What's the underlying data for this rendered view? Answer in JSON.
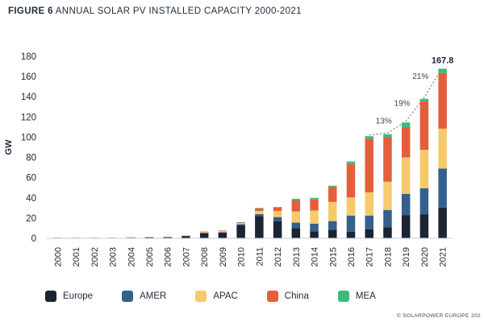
{
  "figure": {
    "label": "FIGURE 6",
    "title": "ANNUAL SOLAR PV INSTALLED CAPACITY 2000-2021",
    "credit": "© SOLARPOWER EUROPE 202"
  },
  "chart_data": {
    "type": "bar",
    "stacked": true,
    "categories": [
      "2000",
      "2001",
      "2002",
      "2003",
      "2004",
      "2005",
      "2006",
      "2007",
      "2008",
      "2009",
      "2010",
      "2011",
      "2012",
      "2013",
      "2014",
      "2015",
      "2016",
      "2017",
      "2018",
      "2019",
      "2020",
      "2021"
    ],
    "ylabel": "GW",
    "xlabel": "",
    "ylim": [
      0,
      180
    ],
    "yticks": [
      0,
      20,
      40,
      60,
      80,
      100,
      120,
      140,
      160,
      180
    ],
    "grid": false,
    "legend_position": "bottom",
    "series": [
      {
        "name": "Europe",
        "color": "#1a2433",
        "values": [
          0.1,
          0.2,
          0.2,
          0.3,
          0.6,
          0.8,
          1.0,
          2.0,
          5.0,
          5.5,
          13.0,
          22.0,
          17.0,
          10.0,
          7.0,
          8.5,
          6.5,
          9.0,
          11.0,
          23.0,
          23.5,
          30.5
        ]
      },
      {
        "name": "AMER",
        "color": "#355f8d",
        "values": [
          0.05,
          0.1,
          0.1,
          0.1,
          0.1,
          0.1,
          0.2,
          0.3,
          0.5,
          0.5,
          1.0,
          2.0,
          4.0,
          5.5,
          7.5,
          8.5,
          16.0,
          13.5,
          17.0,
          21.0,
          26.0,
          38.5
        ]
      },
      {
        "name": "APAC",
        "color": "#f6c96b",
        "values": [
          0.2,
          0.2,
          0.3,
          0.3,
          0.4,
          0.5,
          0.3,
          0.6,
          0.7,
          1.2,
          1.0,
          3.0,
          6.0,
          11.0,
          13.0,
          19.0,
          18.0,
          23.0,
          28.0,
          36.0,
          38.0,
          39.5
        ]
      },
      {
        "name": "China",
        "color": "#e35f3b",
        "values": [
          0.0,
          0.0,
          0.0,
          0.0,
          0.0,
          0.0,
          0.0,
          0.0,
          0.05,
          0.15,
          0.5,
          2.5,
          3.5,
          11.0,
          11.0,
          15.0,
          33.0,
          53.0,
          44.0,
          30.0,
          48.0,
          55.0
        ]
      },
      {
        "name": "MEA",
        "color": "#3dba7e",
        "values": [
          0.0,
          0.0,
          0.0,
          0.0,
          0.0,
          0.0,
          0.0,
          0.0,
          0.0,
          0.0,
          0.1,
          0.5,
          0.5,
          1.5,
          1.5,
          1.0,
          2.5,
          2.5,
          3.0,
          4.5,
          2.5,
          4.3
        ]
      }
    ],
    "annotations": {
      "total_label": "167.8",
      "growth": [
        {
          "year": "2018",
          "text": "13%"
        },
        {
          "year": "2019",
          "text": "19%"
        },
        {
          "year": "2020",
          "text": "21%"
        }
      ],
      "trend_line_color": "#8a9096"
    }
  }
}
